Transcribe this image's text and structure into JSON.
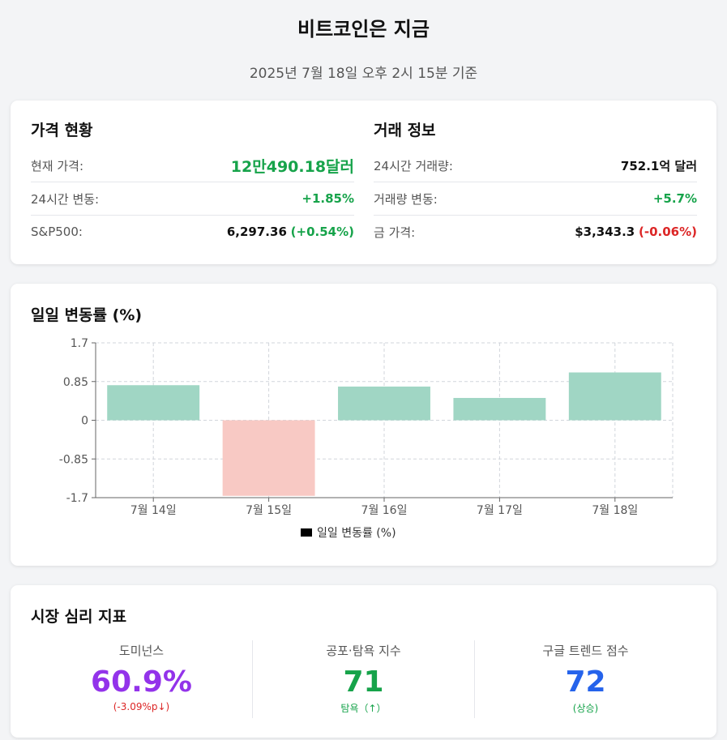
{
  "header": {
    "title": "비트코인은 지금",
    "subtitle": "2025년 7월 18일 오후 2시 15분 기준"
  },
  "price_status": {
    "title": "가격 현황",
    "rows": [
      {
        "label": "현재 가격:",
        "value": "12만490.18달러"
      },
      {
        "label": "24시간 변동:",
        "value": "+1.85%"
      },
      {
        "label": "S&P500:",
        "value": "6,297.36",
        "change": "(+0.54%)"
      }
    ]
  },
  "trade_info": {
    "title": "거래 정보",
    "rows": [
      {
        "label": "24시간 거래량:",
        "value": "752.1억 달러"
      },
      {
        "label": "거래량 변동:",
        "value": "+5.7%"
      },
      {
        "label": "금 가격:",
        "value": "$3,343.3",
        "change": "(-0.06%)"
      }
    ]
  },
  "chart_section": {
    "title": "일일 변동률 (%)"
  },
  "chart_data": {
    "type": "bar",
    "categories": [
      "7월 14일",
      "7월 15일",
      "7월 16일",
      "7월 17일",
      "7월 18일"
    ],
    "series": [
      {
        "name": "일일 변동률 (%)",
        "values": [
          0.77,
          -1.66,
          0.74,
          0.49,
          1.05
        ]
      }
    ],
    "yticks": [
      "1.7",
      "0.85",
      "0",
      "-0.85",
      "-1.7"
    ],
    "ylim": [
      -1.7,
      1.7
    ],
    "grid": true,
    "legend": "bottom",
    "colors": {
      "positive": "#a0d6c4",
      "negative": "#f8c9c4",
      "legend_swatch": "#000000"
    }
  },
  "sentiment": {
    "title": "시장 심리 지표",
    "metrics": [
      {
        "label": "도미넌스",
        "value": "60.9%",
        "sub": "(-3.09%p↓)",
        "color": "#9333ea"
      },
      {
        "label": "공포·탐욕 지수",
        "value": "71",
        "sub": "탐욕（↑）",
        "color": "#16a34a"
      },
      {
        "label": "구글 트렌드 점수",
        "value": "72",
        "sub": "(상승)",
        "color": "#2563eb"
      }
    ]
  },
  "colors": {
    "positive": "#16a34a",
    "negative": "#dc2626",
    "background": "#f3f4f6"
  }
}
